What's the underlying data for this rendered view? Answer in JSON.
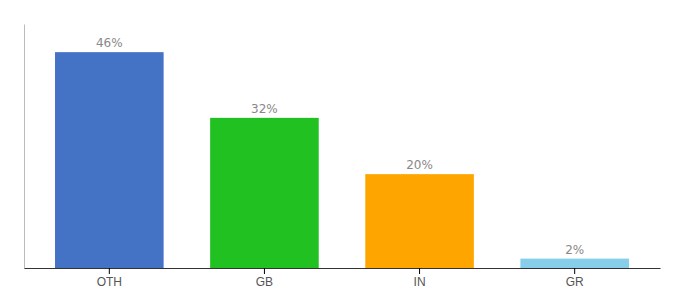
{
  "chart_data": {
    "type": "bar",
    "categories": [
      "OTH",
      "GB",
      "IN",
      "GR"
    ],
    "values": [
      46,
      32,
      20,
      2
    ],
    "value_labels": [
      "46%",
      "32%",
      "20%",
      "2%"
    ],
    "colors": [
      "#4472C4",
      "#21C121",
      "#FFA500",
      "#87CEEB"
    ],
    "ylim": [
      0,
      52
    ],
    "data_labels": true,
    "tick_labels": "x",
    "grid": false
  }
}
